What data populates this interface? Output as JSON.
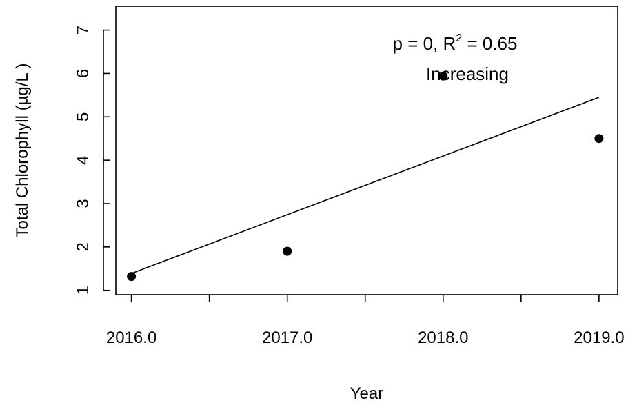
{
  "chart_data": {
    "type": "scatter",
    "title": "",
    "xlabel": "Year",
    "ylabel": "Total Chlorophyll (µg/L )",
    "xlim": [
      2015.9,
      2019.12
    ],
    "ylim": [
      0.9,
      7.55
    ],
    "x_ticks": [
      2016.0,
      2016.5,
      2017.0,
      2017.5,
      2018.0,
      2018.5,
      2019.0
    ],
    "x_tick_labels": [
      {
        "value": 2016.0,
        "label": "2016.0"
      },
      {
        "value": 2017.0,
        "label": "2017.0"
      },
      {
        "value": 2018.0,
        "label": "2018.0"
      },
      {
        "value": 2019.0,
        "label": "2019.0"
      }
    ],
    "y_ticks": [
      {
        "value": 1,
        "label": "1"
      },
      {
        "value": 2,
        "label": "2"
      },
      {
        "value": 3,
        "label": "3"
      },
      {
        "value": 4,
        "label": "4"
      },
      {
        "value": 5,
        "label": "5"
      },
      {
        "value": 6,
        "label": "6"
      },
      {
        "value": 7,
        "label": "7"
      }
    ],
    "points": [
      {
        "x": 2016.0,
        "y": 1.32
      },
      {
        "x": 2017.0,
        "y": 1.9
      },
      {
        "x": 2018.0,
        "y": 5.94
      },
      {
        "x": 2019.0,
        "y": 4.5
      }
    ],
    "trend_line": {
      "x1": 2016.0,
      "y1": 1.39,
      "x2": 2019.0,
      "y2": 5.45
    },
    "annotations": {
      "stats_prefix": "p = 0, R",
      "stats_superscript": "2",
      "stats_suffix": " = 0.65",
      "trend": "Increasing"
    },
    "grid": false,
    "colors": {
      "points": "#000000",
      "line": "#000000",
      "frame": "#000000"
    }
  }
}
